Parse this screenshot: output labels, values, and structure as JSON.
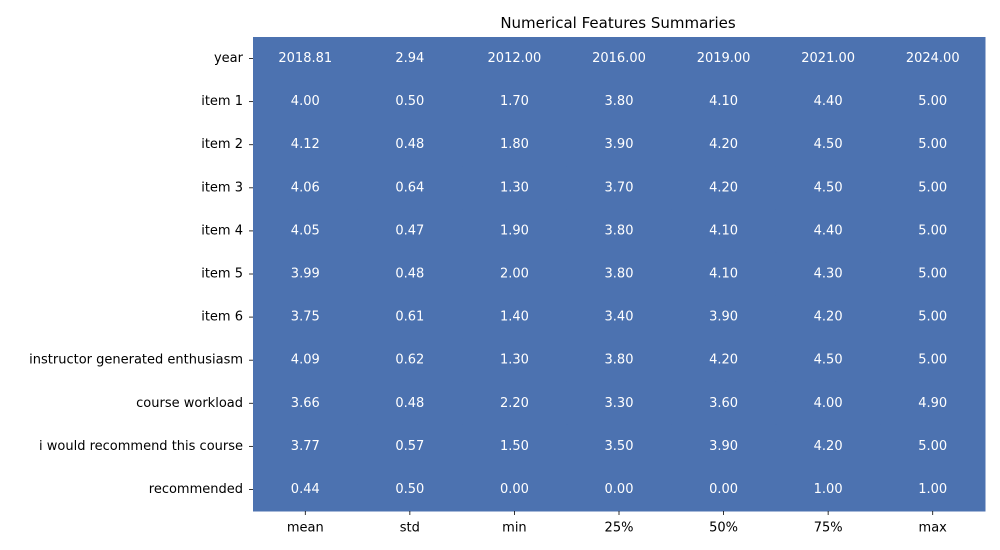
{
  "chart_data": {
    "type": "table",
    "title": "Numerical Features Summaries",
    "xlabel": "",
    "ylabel": "",
    "grid": false,
    "legend": "none",
    "cell_color": "#4c72b0",
    "text_color": "#ffffff",
    "columns": [
      "mean",
      "std",
      "min",
      "25%",
      "50%",
      "75%",
      "max"
    ],
    "rows": [
      "year",
      "item 1",
      "item 2",
      "item 3",
      "item 4",
      "item 5",
      "item 6",
      "instructor generated enthusiasm",
      "course workload",
      "i would recommend this course",
      "recommended"
    ],
    "values": [
      [
        "2018.81",
        "2.94",
        "2012.00",
        "2016.00",
        "2019.00",
        "2021.00",
        "2024.00"
      ],
      [
        "4.00",
        "0.50",
        "1.70",
        "3.80",
        "4.10",
        "4.40",
        "5.00"
      ],
      [
        "4.12",
        "0.48",
        "1.80",
        "3.90",
        "4.20",
        "4.50",
        "5.00"
      ],
      [
        "4.06",
        "0.64",
        "1.30",
        "3.70",
        "4.20",
        "4.50",
        "5.00"
      ],
      [
        "4.05",
        "0.47",
        "1.90",
        "3.80",
        "4.10",
        "4.40",
        "5.00"
      ],
      [
        "3.99",
        "0.48",
        "2.00",
        "3.80",
        "4.10",
        "4.30",
        "5.00"
      ],
      [
        "3.75",
        "0.61",
        "1.40",
        "3.40",
        "3.90",
        "4.20",
        "5.00"
      ],
      [
        "4.09",
        "0.62",
        "1.30",
        "3.80",
        "4.20",
        "4.50",
        "5.00"
      ],
      [
        "3.66",
        "0.48",
        "2.20",
        "3.30",
        "3.60",
        "4.00",
        "4.90"
      ],
      [
        "3.77",
        "0.57",
        "1.50",
        "3.50",
        "3.90",
        "4.20",
        "5.00"
      ],
      [
        "0.44",
        "0.50",
        "0.00",
        "0.00",
        "0.00",
        "1.00",
        "1.00"
      ]
    ]
  }
}
